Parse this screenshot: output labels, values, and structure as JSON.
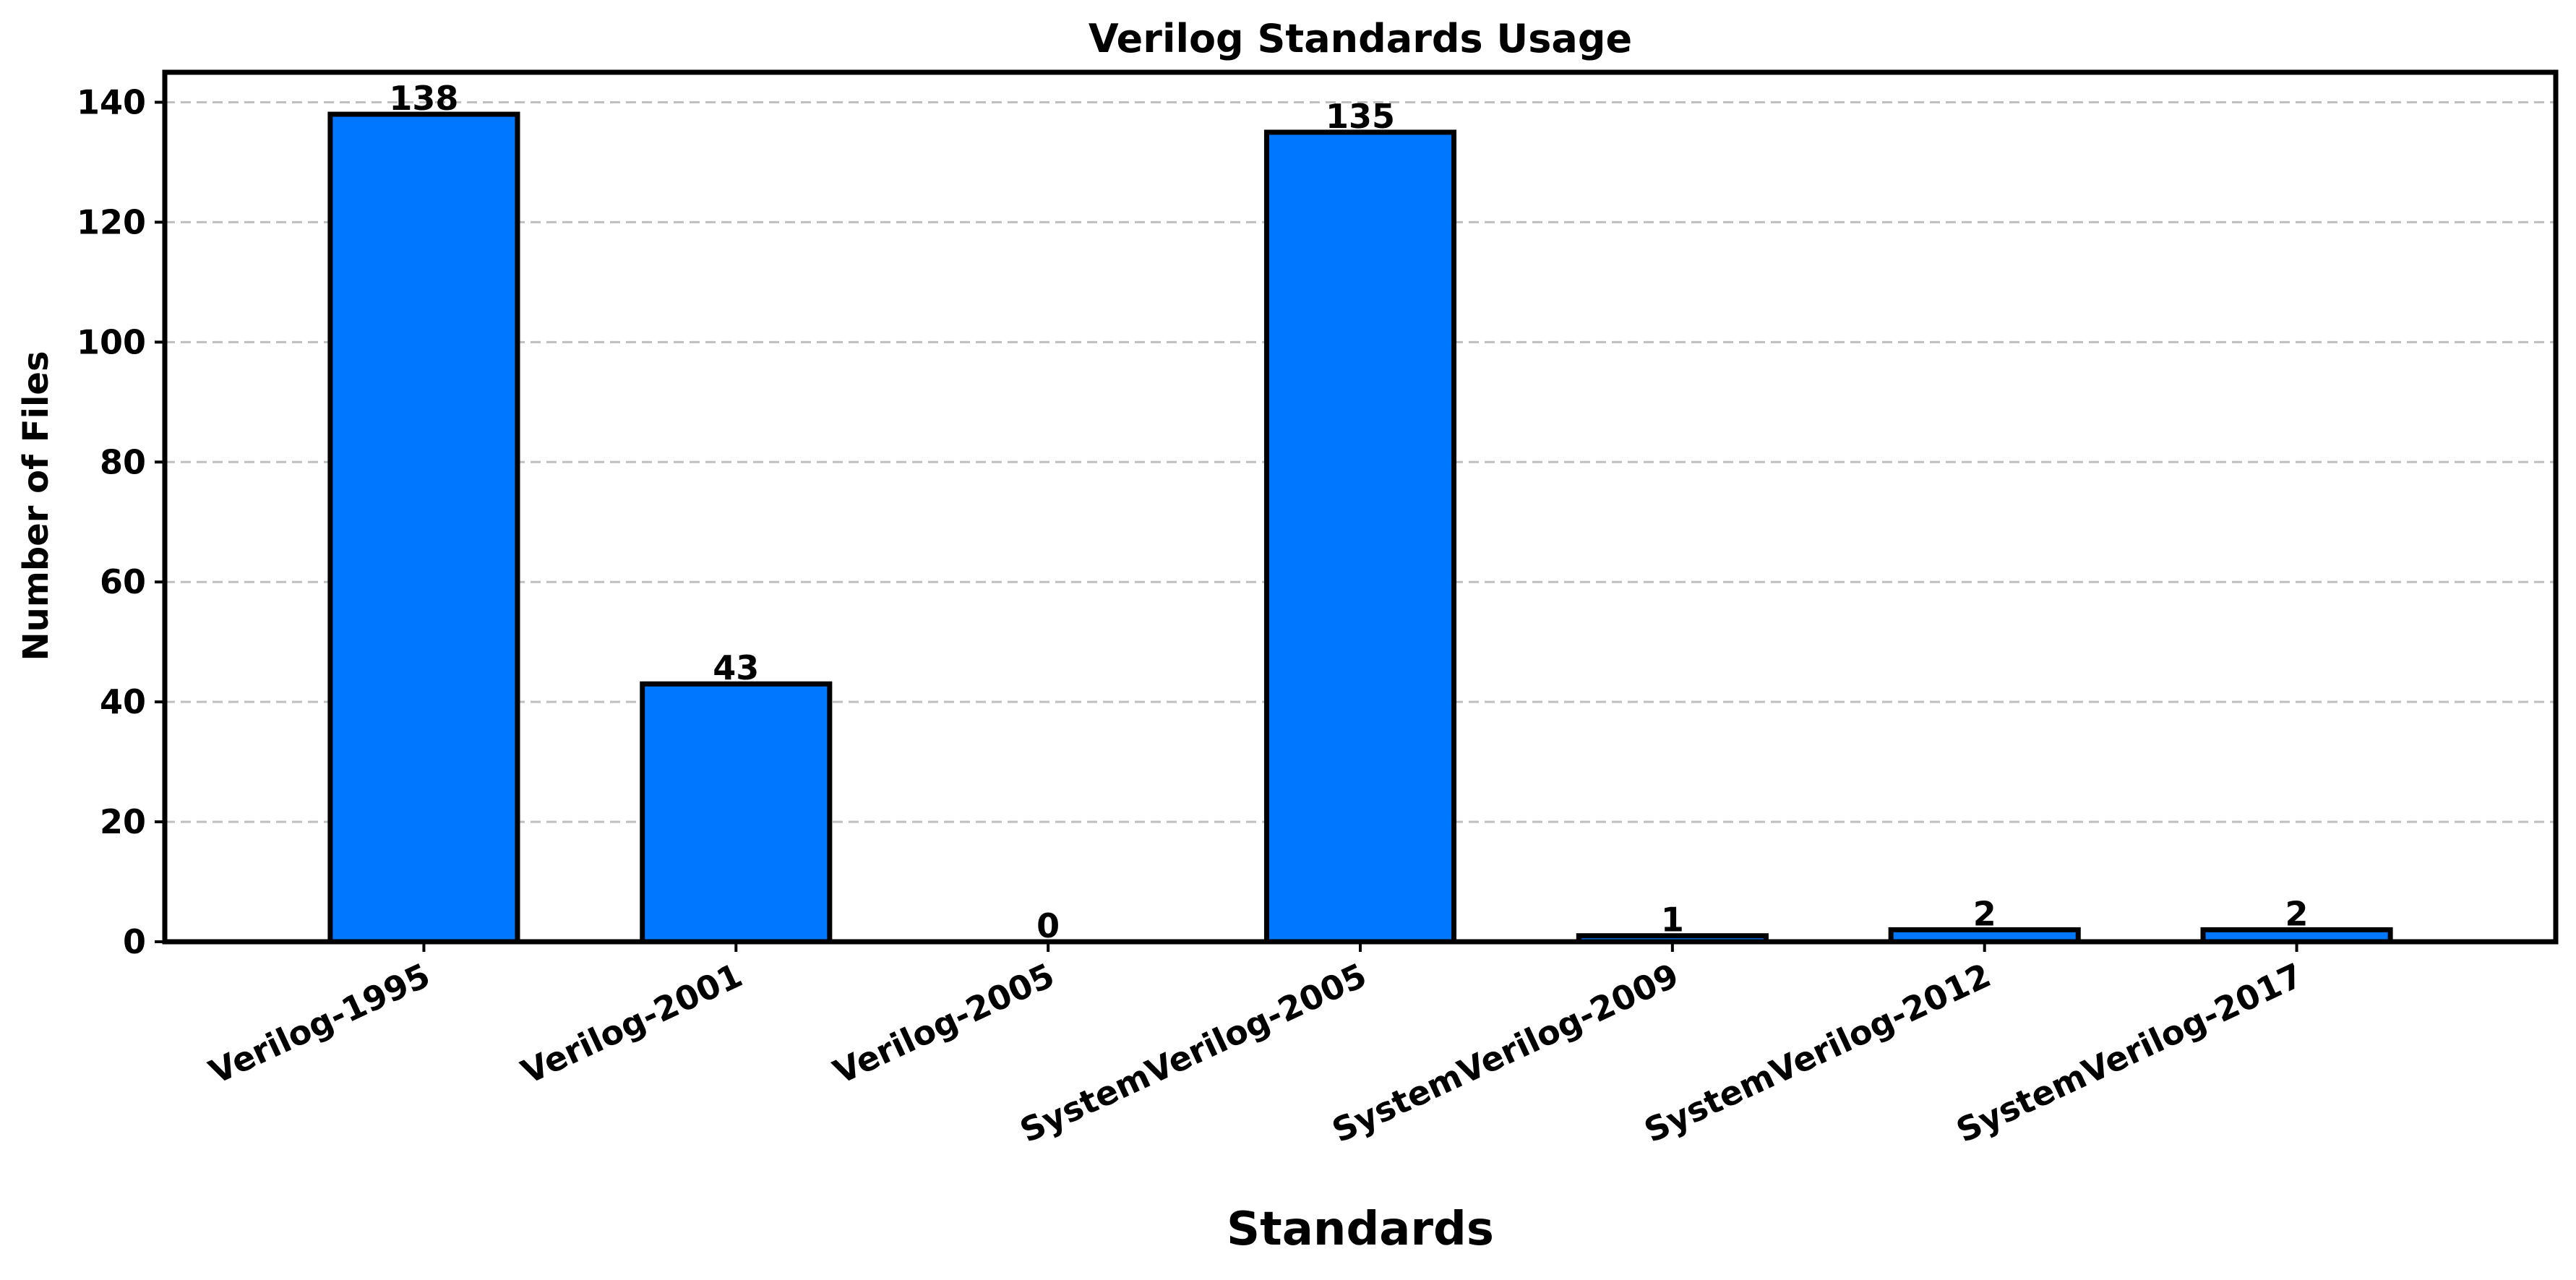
{
  "chart_data": {
    "type": "bar",
    "title": "Verilog Standards Usage",
    "xlabel": "Standards",
    "ylabel": "Number of Files",
    "categories": [
      "Verilog-1995",
      "Verilog-2001",
      "Verilog-2005",
      "SystemVerilog-2005",
      "SystemVerilog-2009",
      "SystemVerilog-2012",
      "SystemVerilog-2017"
    ],
    "values": [
      138,
      43,
      0,
      135,
      1,
      2,
      2
    ],
    "data_labels": [
      "138",
      "43",
      "0",
      "135",
      "1",
      "2",
      "2"
    ],
    "ylim": [
      0,
      145
    ],
    "yticks": [
      0,
      20,
      40,
      60,
      80,
      100,
      120,
      140
    ],
    "ytick_labels": [
      "0",
      "20",
      "40",
      "60",
      "80",
      "100",
      "120",
      "140"
    ],
    "grid": "y-dashed",
    "legend": "none",
    "colors": {
      "bar": "#0077FF",
      "bar_edge": "#000000",
      "grid": "#BFBFBF"
    }
  }
}
